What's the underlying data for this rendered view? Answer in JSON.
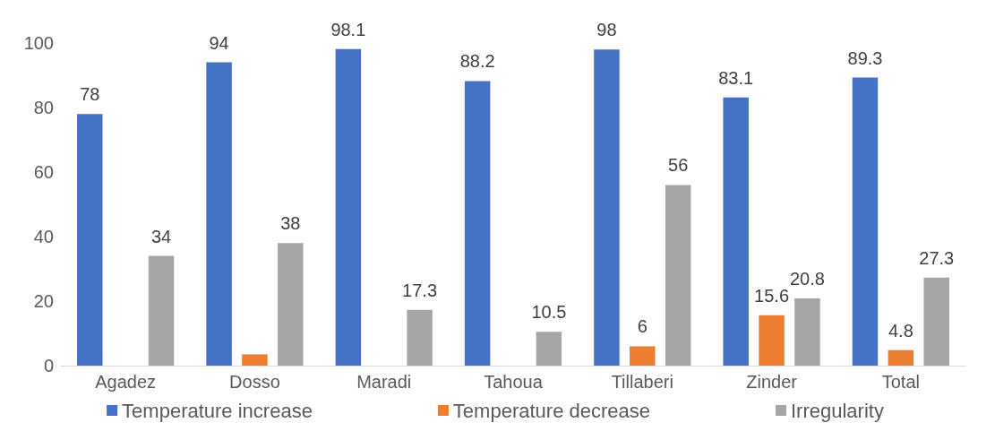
{
  "chart_data": {
    "type": "bar",
    "categories": [
      "Agadez",
      "Dosso",
      "Maradi",
      "Tahoua",
      "Tillaberi",
      "Zinder",
      "Total"
    ],
    "series": [
      {
        "name": "Temperature increase",
        "color": "#4472c4",
        "values": [
          78,
          94,
          98.1,
          88.2,
          98,
          83.1,
          89.3
        ],
        "value_labels": [
          "78",
          "94",
          "98.1",
          "88.2",
          "98",
          "83.1",
          "89.3"
        ]
      },
      {
        "name": "Temperature decrease",
        "color": "#ed7d31",
        "values": [
          null,
          3.5,
          null,
          null,
          6,
          15.6,
          4.8
        ],
        "value_labels": [
          null,
          null,
          null,
          null,
          "6",
          "15.6",
          "4.8"
        ]
      },
      {
        "name": "Irregularity",
        "color": "#a5a5a5",
        "values": [
          34,
          38,
          17.3,
          10.5,
          56,
          20.8,
          27.3
        ],
        "value_labels": [
          "34",
          "38",
          "17.3",
          "10.5",
          "56",
          "20.8",
          "27.3"
        ]
      }
    ],
    "ylim": [
      0,
      100
    ],
    "yticks": [
      0,
      20,
      40,
      60,
      80,
      100
    ],
    "grid": false,
    "legend": "bottom"
  }
}
